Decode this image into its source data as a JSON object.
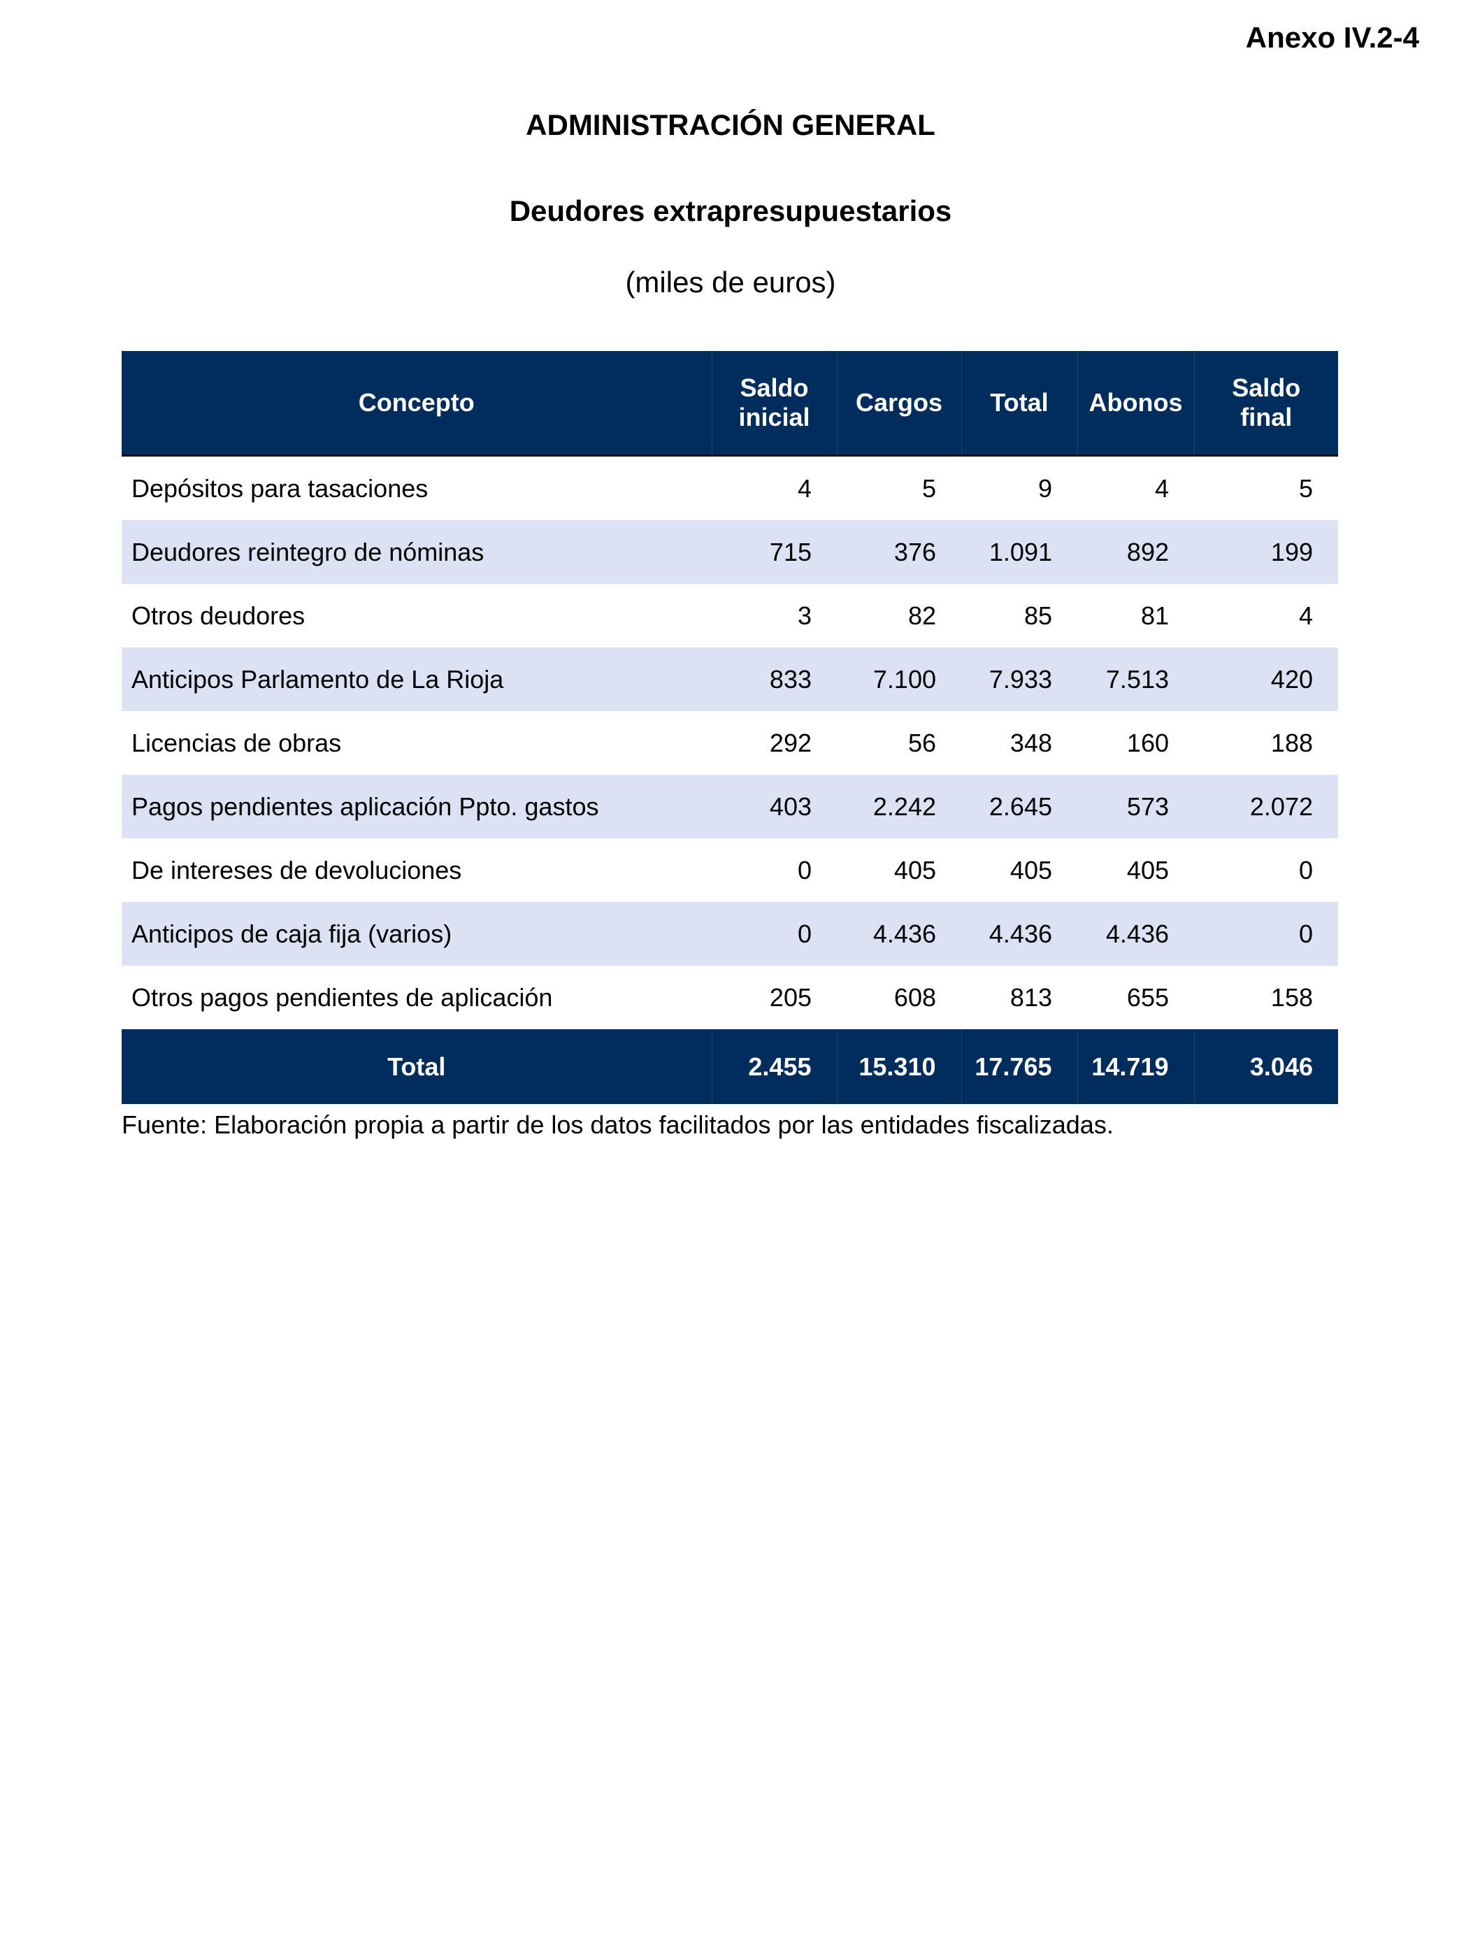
{
  "annex": "Anexo IV.2-4",
  "title": "ADMINISTRACIÓN GENERAL",
  "subtitle": "Deudores extrapresupuestarios",
  "units": "(miles de euros)",
  "table": {
    "headers": [
      [
        "Concepto"
      ],
      [
        "Saldo",
        "inicial"
      ],
      [
        "Cargos"
      ],
      [
        "Total"
      ],
      [
        "Abonos"
      ],
      [
        "Saldo",
        "final"
      ]
    ],
    "rows": [
      [
        "Depósitos para tasaciones",
        "4",
        "5",
        "9",
        "4",
        "5"
      ],
      [
        "Deudores reintegro de nóminas",
        "715",
        "376",
        "1.091",
        "892",
        "199"
      ],
      [
        "Otros deudores",
        "3",
        "82",
        "85",
        "81",
        "4"
      ],
      [
        "Anticipos Parlamento de La Rioja",
        "833",
        "7.100",
        "7.933",
        "7.513",
        "420"
      ],
      [
        "Licencias de obras",
        "292",
        "56",
        "348",
        "160",
        "188"
      ],
      [
        "Pagos pendientes aplicación Ppto. gastos",
        "403",
        "2.242",
        "2.645",
        "573",
        "2.072"
      ],
      [
        "De intereses de devoluciones",
        "0",
        "405",
        "405",
        "405",
        "0"
      ],
      [
        "Anticipos de caja fija (varios)",
        "0",
        "4.436",
        "4.436",
        "4.436",
        "0"
      ],
      [
        "Otros pagos pendientes de aplicación",
        "205",
        "608",
        "813",
        "655",
        "158"
      ]
    ],
    "total": [
      "Total",
      "2.455",
      "15.310",
      "17.765",
      "14.719",
      "3.046"
    ]
  },
  "source": "Fuente: Elaboración propia a partir de los datos facilitados por las entidades fiscalizadas.",
  "colors": {
    "header": "#002d5c",
    "stripe": "#dae2f3"
  }
}
